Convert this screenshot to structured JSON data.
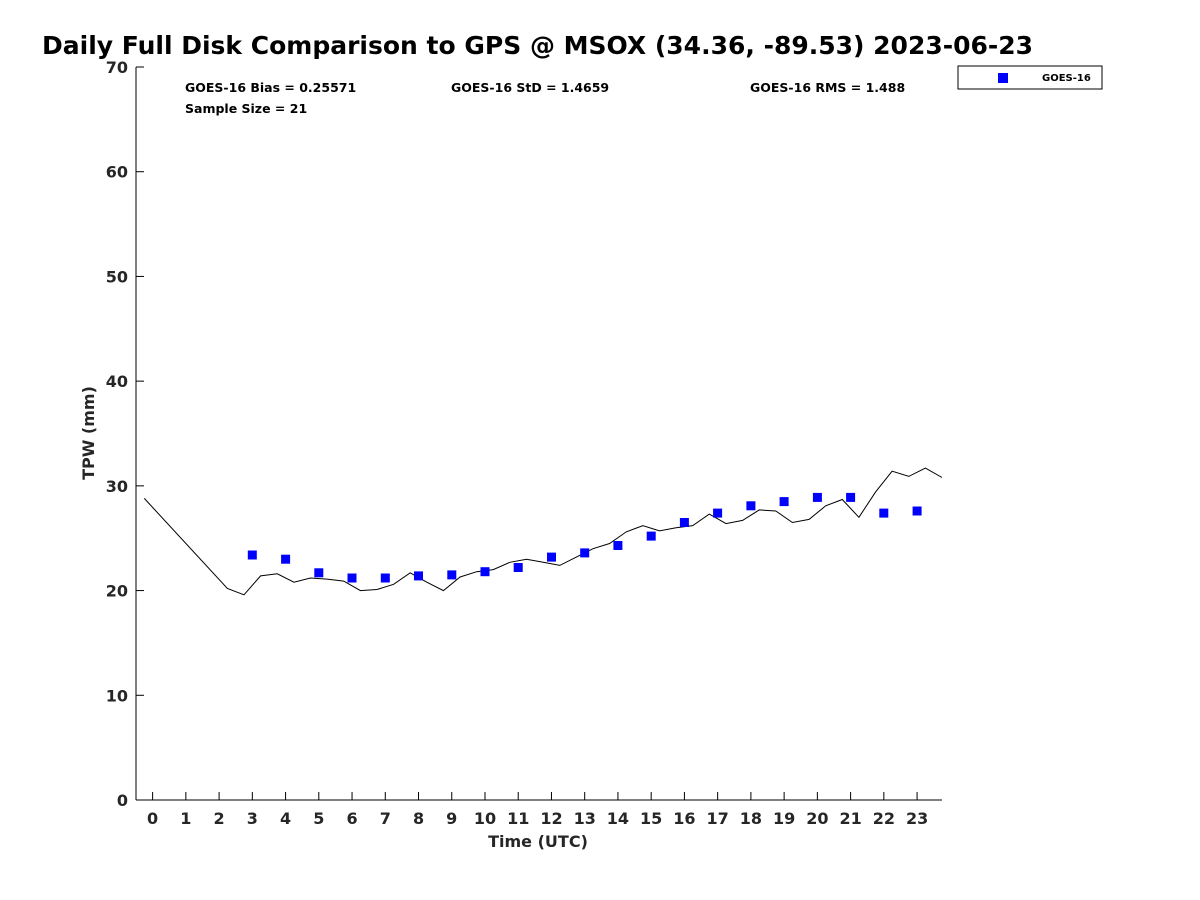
{
  "chart_data": {
    "type": "scatter",
    "title": "Daily Full Disk Comparison to GPS @ MSOX (34.36, -89.53) 2023-06-23",
    "xlabel": "Time (UTC)",
    "ylabel": "TPW (mm)",
    "xlim": [
      -0.5,
      23.75
    ],
    "ylim": [
      0,
      70
    ],
    "xticks": [
      0,
      1,
      2,
      3,
      4,
      5,
      6,
      7,
      8,
      9,
      10,
      11,
      12,
      13,
      14,
      15,
      16,
      17,
      18,
      19,
      20,
      21,
      22,
      23
    ],
    "yticks": [
      0,
      10,
      20,
      30,
      40,
      50,
      60,
      70
    ],
    "grid": false,
    "legend_position": "top-right",
    "stats": {
      "bias": "GOES-16 Bias = 0.25571",
      "std": "GOES-16 StD = 1.4659",
      "rms": "GOES-16 RMS = 1.488",
      "sample": "Sample Size = 21"
    },
    "series": [
      {
        "name": "GOES-16",
        "kind": "scatter",
        "marker": "square",
        "color": "#0000ff",
        "x": [
          3,
          4,
          5,
          6,
          7,
          8,
          9,
          10,
          11,
          12,
          13,
          14,
          15,
          16,
          17,
          18,
          19,
          20,
          21,
          22,
          23
        ],
        "y": [
          23.4,
          23.0,
          21.7,
          21.2,
          21.2,
          21.4,
          21.5,
          21.8,
          22.2,
          23.2,
          23.6,
          24.3,
          25.2,
          26.5,
          27.4,
          28.1,
          28.5,
          28.9,
          28.9,
          27.4,
          27.6
        ]
      },
      {
        "kind": "line",
        "color": "#000000",
        "x": [
          -0.25,
          2.25,
          2.75,
          3.25,
          3.75,
          4.25,
          4.75,
          5.25,
          5.75,
          6.25,
          6.75,
          7.25,
          7.75,
          8.25,
          8.75,
          9.25,
          9.75,
          10.25,
          10.75,
          11.25,
          11.75,
          12.25,
          12.75,
          13.25,
          13.75,
          14.25,
          14.75,
          15.25,
          15.75,
          16.25,
          16.75,
          17.25,
          17.75,
          18.25,
          18.75,
          19.25,
          19.75,
          20.25,
          20.75,
          21.25,
          21.75,
          22.25,
          22.75,
          23.25,
          23.75
        ],
        "y": [
          28.8,
          20.2,
          19.6,
          21.4,
          21.6,
          20.8,
          21.2,
          21.1,
          20.9,
          20.0,
          20.1,
          20.6,
          21.7,
          20.8,
          20.0,
          21.3,
          21.8,
          22.0,
          22.7,
          23.0,
          22.7,
          22.4,
          23.2,
          24.0,
          24.5,
          25.6,
          26.2,
          25.7,
          26.0,
          26.2,
          27.3,
          26.4,
          26.7,
          27.7,
          27.6,
          26.5,
          26.8,
          28.1,
          28.7,
          27.0,
          29.4,
          31.4,
          30.9,
          31.7,
          30.8
        ]
      }
    ]
  }
}
